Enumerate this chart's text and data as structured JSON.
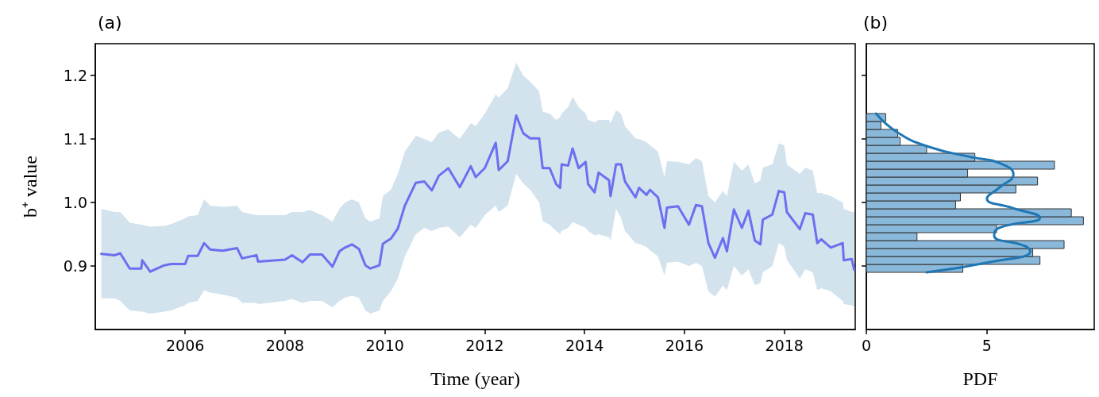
{
  "chart_data": [
    {
      "type": "line",
      "title": "(a)",
      "xlabel": "Time (year)",
      "ylabel": "b⁺ value",
      "xlim": [
        2004.2,
        2019.42
      ],
      "xticks": [
        2006,
        2008,
        2010,
        2012,
        2014,
        2016,
        2018
      ],
      "ylim": [
        0.8,
        1.25
      ],
      "yticks": [
        0.9,
        {
          "value": 1.0,
          "label": "1.0"
        },
        1.1,
        1.2
      ],
      "grid": false,
      "series": [
        {
          "color": "#6b6ff0",
          "x": [
            2004.32,
            2004.59,
            2004.7,
            2004.89,
            2005.12,
            2005.14,
            2005.3,
            2005.58,
            2005.72,
            2006.0,
            2006.06,
            2006.25,
            2006.38,
            2006.5,
            2006.75,
            2007.04,
            2007.14,
            2007.43,
            2007.46,
            2008.0,
            2008.14,
            2008.35,
            2008.5,
            2008.74,
            2008.95,
            2009.09,
            2009.2,
            2009.34,
            2009.48,
            2009.61,
            2009.71,
            2009.89,
            2009.96,
            2010.12,
            2010.26,
            2010.4,
            2010.62,
            2010.79,
            2010.94,
            2011.08,
            2011.27,
            2011.5,
            2011.72,
            2011.82,
            2012.0,
            2012.22,
            2012.28,
            2012.46,
            2012.63,
            2012.77,
            2012.91,
            2013.09,
            2013.16,
            2013.3,
            2013.43,
            2013.51,
            2013.54,
            2013.67,
            2013.76,
            2013.88,
            2014.02,
            2014.07,
            2014.2,
            2014.28,
            2014.49,
            2014.52,
            2014.63,
            2014.73,
            2014.81,
            2015.02,
            2015.09,
            2015.24,
            2015.31,
            2015.47,
            2015.6,
            2015.65,
            2015.87,
            2016.09,
            2016.23,
            2016.35,
            2016.48,
            2016.61,
            2016.77,
            2016.85,
            2016.99,
            2017.15,
            2017.28,
            2017.41,
            2017.52,
            2017.57,
            2017.76,
            2017.89,
            2018.0,
            2018.05,
            2018.31,
            2018.42,
            2018.57,
            2018.66,
            2018.74,
            2018.93,
            2019.17,
            2019.19,
            2019.35,
            2019.4
          ],
          "values": [
            0.919,
            0.917,
            0.92,
            0.896,
            0.896,
            0.909,
            0.891,
            0.901,
            0.903,
            0.903,
            0.916,
            0.916,
            0.936,
            0.926,
            0.924,
            0.928,
            0.912,
            0.917,
            0.907,
            0.91,
            0.917,
            0.906,
            0.918,
            0.918,
            0.899,
            0.923,
            0.929,
            0.934,
            0.927,
            0.901,
            0.896,
            0.901,
            0.935,
            0.943,
            0.959,
            0.995,
            1.031,
            1.033,
            1.019,
            1.042,
            1.054,
            1.024,
            1.057,
            1.04,
            1.054,
            1.094,
            1.051,
            1.065,
            1.137,
            1.109,
            1.101,
            1.101,
            1.054,
            1.054,
            1.029,
            1.023,
            1.06,
            1.058,
            1.085,
            1.054,
            1.064,
            1.029,
            1.016,
            1.047,
            1.035,
            1.01,
            1.06,
            1.06,
            1.033,
            1.008,
            1.023,
            1.012,
            1.02,
            1.008,
            0.96,
            0.992,
            0.994,
            0.965,
            0.996,
            0.994,
            0.936,
            0.913,
            0.944,
            0.923,
            0.989,
            0.96,
            0.987,
            0.94,
            0.934,
            0.973,
            0.981,
            1.018,
            1.016,
            0.985,
            0.958,
            0.983,
            0.981,
            0.936,
            0.942,
            0.929,
            0.936,
            0.909,
            0.911,
            0.894
          ],
          "lower": [
            0.849,
            0.849,
            0.845,
            0.83,
            0.828,
            0.828,
            0.825,
            0.828,
            0.83,
            0.838,
            0.842,
            0.845,
            0.862,
            0.858,
            0.855,
            0.85,
            0.842,
            0.842,
            0.84,
            0.845,
            0.848,
            0.842,
            0.845,
            0.845,
            0.835,
            0.845,
            0.85,
            0.853,
            0.85,
            0.83,
            0.825,
            0.83,
            0.845,
            0.86,
            0.88,
            0.915,
            0.95,
            0.96,
            0.955,
            0.96,
            0.962,
            0.945,
            0.965,
            0.96,
            0.98,
            0.995,
            0.985,
            0.995,
            1.045,
            1.03,
            1.02,
            1.0,
            0.971,
            0.965,
            0.955,
            0.95,
            0.955,
            0.96,
            0.969,
            0.965,
            0.96,
            0.955,
            0.948,
            0.95,
            0.945,
            0.94,
            0.99,
            0.975,
            0.955,
            0.936,
            0.935,
            0.93,
            0.925,
            0.915,
            0.885,
            0.905,
            0.907,
            0.9,
            0.905,
            0.9,
            0.86,
            0.852,
            0.869,
            0.862,
            0.9,
            0.885,
            0.895,
            0.87,
            0.873,
            0.89,
            0.9,
            0.936,
            0.93,
            0.91,
            0.88,
            0.895,
            0.89,
            0.862,
            0.865,
            0.86,
            0.845,
            0.84,
            0.838,
            0.836
          ],
          "upper": [
            0.99,
            0.985,
            0.985,
            0.968,
            0.965,
            0.965,
            0.962,
            0.963,
            0.966,
            0.975,
            0.978,
            0.98,
            1.005,
            0.995,
            0.993,
            0.995,
            0.985,
            0.98,
            0.98,
            0.98,
            0.985,
            0.985,
            0.988,
            0.98,
            0.97,
            0.99,
            1.0,
            1.005,
            1.0,
            0.975,
            0.97,
            0.975,
            1.01,
            1.02,
            1.045,
            1.08,
            1.105,
            1.1,
            1.095,
            1.11,
            1.115,
            1.1,
            1.125,
            1.12,
            1.14,
            1.17,
            1.165,
            1.18,
            1.22,
            1.2,
            1.19,
            1.175,
            1.143,
            1.14,
            1.13,
            1.134,
            1.14,
            1.15,
            1.167,
            1.15,
            1.14,
            1.13,
            1.126,
            1.13,
            1.13,
            1.125,
            1.145,
            1.14,
            1.12,
            1.101,
            1.1,
            1.095,
            1.09,
            1.08,
            1.04,
            1.065,
            1.064,
            1.06,
            1.07,
            1.065,
            1.01,
            1.0,
            1.018,
            1.01,
            1.064,
            1.05,
            1.06,
            1.03,
            1.035,
            1.055,
            1.06,
            1.093,
            1.09,
            1.06,
            1.045,
            1.055,
            1.05,
            1.015,
            1.015,
            1.01,
            1.0,
            0.99,
            0.985,
            0.985
          ]
        }
      ]
    },
    {
      "type": "histogram",
      "orientation": "horizontal",
      "title": "(b)",
      "xlabel": "PDF",
      "xlim": [
        0,
        9.45
      ],
      "xticks": [
        0,
        5
      ],
      "ylim": [
        0.8,
        1.25
      ],
      "yticks": [
        0.9,
        1.0,
        1.1,
        1.2
      ],
      "tick_labels": "x",
      "grid": false,
      "bins": [
        0.89,
        0.9025,
        0.915,
        0.9275,
        0.94,
        0.9525,
        0.965,
        0.9775,
        0.99,
        1.0025,
        1.015,
        1.0275,
        1.04,
        1.0525,
        1.065,
        1.0775,
        1.09,
        1.1025,
        1.115,
        1.1275,
        1.14
      ],
      "series": [
        {
          "type": "histogram",
          "color": "#8ab8db",
          "values": [
            4.0,
            7.2,
            6.9,
            8.2,
            2.1,
            5.4,
            9.0,
            8.5,
            3.7,
            3.9,
            6.2,
            7.1,
            4.2,
            7.8,
            4.5,
            2.5,
            1.4,
            1.3,
            0.6,
            0.8
          ]
        },
        {
          "type": "line",
          "color": "#1f77b4",
          "x": [
            0.89,
            0.906,
            0.923,
            0.931,
            0.948,
            0.96,
            0.976,
            0.992,
            1.006,
            1.023,
            1.044,
            1.0625,
            1.071,
            1.0875,
            1.11,
            1.14
          ],
          "values": [
            2.5,
            5.1,
            6.8,
            6.6,
            5.3,
            5.5,
            7.2,
            6.0,
            5.0,
            5.5,
            6.1,
            5.5,
            4.4,
            2.6,
            1.3,
            0.4
          ]
        }
      ]
    }
  ]
}
